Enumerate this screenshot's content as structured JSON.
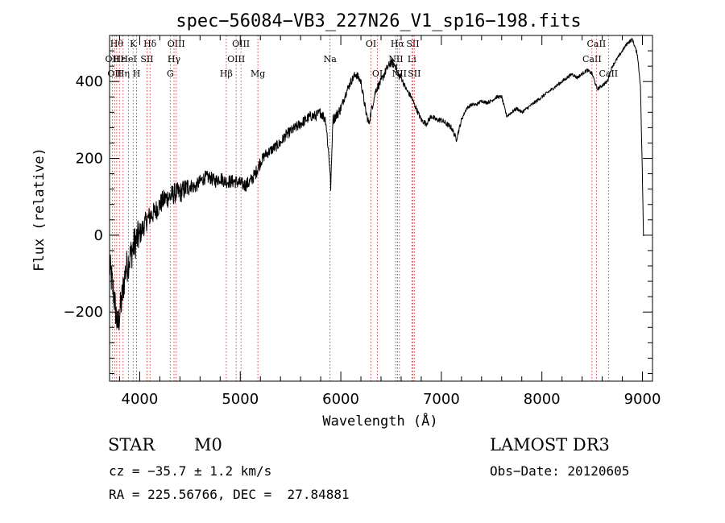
{
  "chart_data": {
    "type": "line",
    "title": "spec−56084−VB3_227N26_V1_sp16−198.fits",
    "xlabel": "Wavelength (Å)",
    "ylabel": "Flux (relative)",
    "xlim": [
      3700,
      9100
    ],
    "ylim": [
      -380,
      520
    ],
    "xticks": [
      {
        "value": 4000,
        "label": "4000"
      },
      {
        "value": 5000,
        "label": "5000"
      },
      {
        "value": 6000,
        "label": "6000"
      },
      {
        "value": 7000,
        "label": "7000"
      },
      {
        "value": 8000,
        "label": "8000"
      },
      {
        "value": 9000,
        "label": "9000"
      }
    ],
    "yticks": [
      {
        "value": -200,
        "label": "−200"
      },
      {
        "value": 0,
        "label": "0"
      },
      {
        "value": 200,
        "label": "200"
      },
      {
        "value": 400,
        "label": "400"
      }
    ],
    "series": [
      {
        "name": "spectrum",
        "x": [
          3700,
          3740,
          3780,
          3820,
          3860,
          3900,
          3950,
          4000,
          4050,
          4100,
          4150,
          4200,
          4250,
          4300,
          4350,
          4400,
          4450,
          4500,
          4550,
          4600,
          4650,
          4700,
          4750,
          4800,
          4850,
          4900,
          4950,
          5000,
          5050,
          5100,
          5150,
          5200,
          5250,
          5300,
          5350,
          5400,
          5450,
          5500,
          5550,
          5600,
          5650,
          5700,
          5750,
          5800,
          5850,
          5890,
          5900,
          5920,
          5950,
          6000,
          6050,
          6100,
          6150,
          6200,
          6250,
          6280,
          6300,
          6350,
          6400,
          6450,
          6500,
          6550,
          6563,
          6600,
          6650,
          6700,
          6750,
          6800,
          6850,
          6900,
          6950,
          7000,
          7050,
          7100,
          7150,
          7200,
          7250,
          7300,
          7350,
          7400,
          7450,
          7500,
          7550,
          7600,
          7650,
          7700,
          7750,
          7800,
          7850,
          7900,
          7950,
          8000,
          8050,
          8100,
          8150,
          8200,
          8250,
          8300,
          8350,
          8400,
          8450,
          8500,
          8550,
          8600,
          8650,
          8700,
          8750,
          8800,
          8850,
          8900,
          8950,
          8980,
          9000,
          9010
        ],
        "y": [
          -80,
          -150,
          -240,
          -170,
          -90,
          -60,
          -20,
          0,
          30,
          50,
          60,
          80,
          95,
          100,
          110,
          110,
          120,
          130,
          125,
          140,
          150,
          150,
          140,
          150,
          140,
          140,
          140,
          135,
          130,
          140,
          160,
          190,
          210,
          220,
          230,
          240,
          260,
          270,
          280,
          290,
          300,
          310,
          310,
          320,
          300,
          180,
          120,
          300,
          310,
          330,
          370,
          400,
          420,
          400,
          320,
          290,
          320,
          380,
          400,
          430,
          450,
          440,
          420,
          410,
          380,
          360,
          330,
          300,
          290,
          310,
          300,
          300,
          290,
          280,
          250,
          300,
          330,
          340,
          340,
          350,
          345,
          350,
          360,
          360,
          310,
          320,
          330,
          320,
          330,
          340,
          350,
          360,
          370,
          380,
          390,
          400,
          410,
          420,
          410,
          420,
          430,
          420,
          380,
          390,
          400,
          440,
          460,
          480,
          500,
          510,
          470,
          390,
          150,
          0
        ]
      }
    ],
    "line_markers": [
      {
        "wavelength": 3727,
        "label": "OII",
        "row": 2
      },
      {
        "wavelength": 3750,
        "label": "OII",
        "row": 3
      },
      {
        "wavelength": 3771,
        "label": "Hθ",
        "row": 1
      },
      {
        "wavelength": 3798,
        "label": "Hε",
        "row": 2
      },
      {
        "wavelength": 3835,
        "label": "Hη",
        "row": 3
      },
      {
        "wavelength": 3889,
        "label": "HeI",
        "row": 2
      },
      {
        "wavelength": 3934,
        "label": "K",
        "row": 1
      },
      {
        "wavelength": 3969,
        "label": "H",
        "row": 3
      },
      {
        "wavelength": 4072,
        "label": "SII",
        "row": 2
      },
      {
        "wavelength": 4102,
        "label": "Hδ",
        "row": 1
      },
      {
        "wavelength": 4304,
        "label": "G",
        "row": 3
      },
      {
        "wavelength": 4341,
        "label": "Hγ",
        "row": 2
      },
      {
        "wavelength": 4363,
        "label": "OIII",
        "row": 1
      },
      {
        "wavelength": 4861,
        "label": "Hβ",
        "row": 3
      },
      {
        "wavelength": 4959,
        "label": "OIII",
        "row": 2
      },
      {
        "wavelength": 5007,
        "label": "OIII",
        "row": 1
      },
      {
        "wavelength": 5175,
        "label": "Mg",
        "row": 3
      },
      {
        "wavelength": 5893,
        "label": "Na",
        "row": 2
      },
      {
        "wavelength": 6300,
        "label": "OI",
        "row": 1
      },
      {
        "wavelength": 6364,
        "label": "OI",
        "row": 3
      },
      {
        "wavelength": 6548,
        "label": "NII",
        "row": 2
      },
      {
        "wavelength": 6563,
        "label": "Hα",
        "row": 1
      },
      {
        "wavelength": 6583,
        "label": "NII",
        "row": 3
      },
      {
        "wavelength": 6707,
        "label": "Li",
        "row": 2
      },
      {
        "wavelength": 6716,
        "label": "SII",
        "row": 1
      },
      {
        "wavelength": 6731,
        "label": "SII",
        "row": 3
      },
      {
        "wavelength": 8498,
        "label": "CaII",
        "row": 2
      },
      {
        "wavelength": 8542,
        "label": "CaII",
        "row": 1
      },
      {
        "wavelength": 8662,
        "label": "CaII",
        "row": 3
      }
    ]
  },
  "info": {
    "class_label": "STAR",
    "subclass_label": "M0",
    "survey_label": "LAMOST DR3",
    "cz_text": "cz = −35.7 ± 1.2 km/s",
    "obs_date_text": "Obs−Date: 20120605",
    "radec_text": "RA = 225.56766, DEC =  27.84881"
  }
}
